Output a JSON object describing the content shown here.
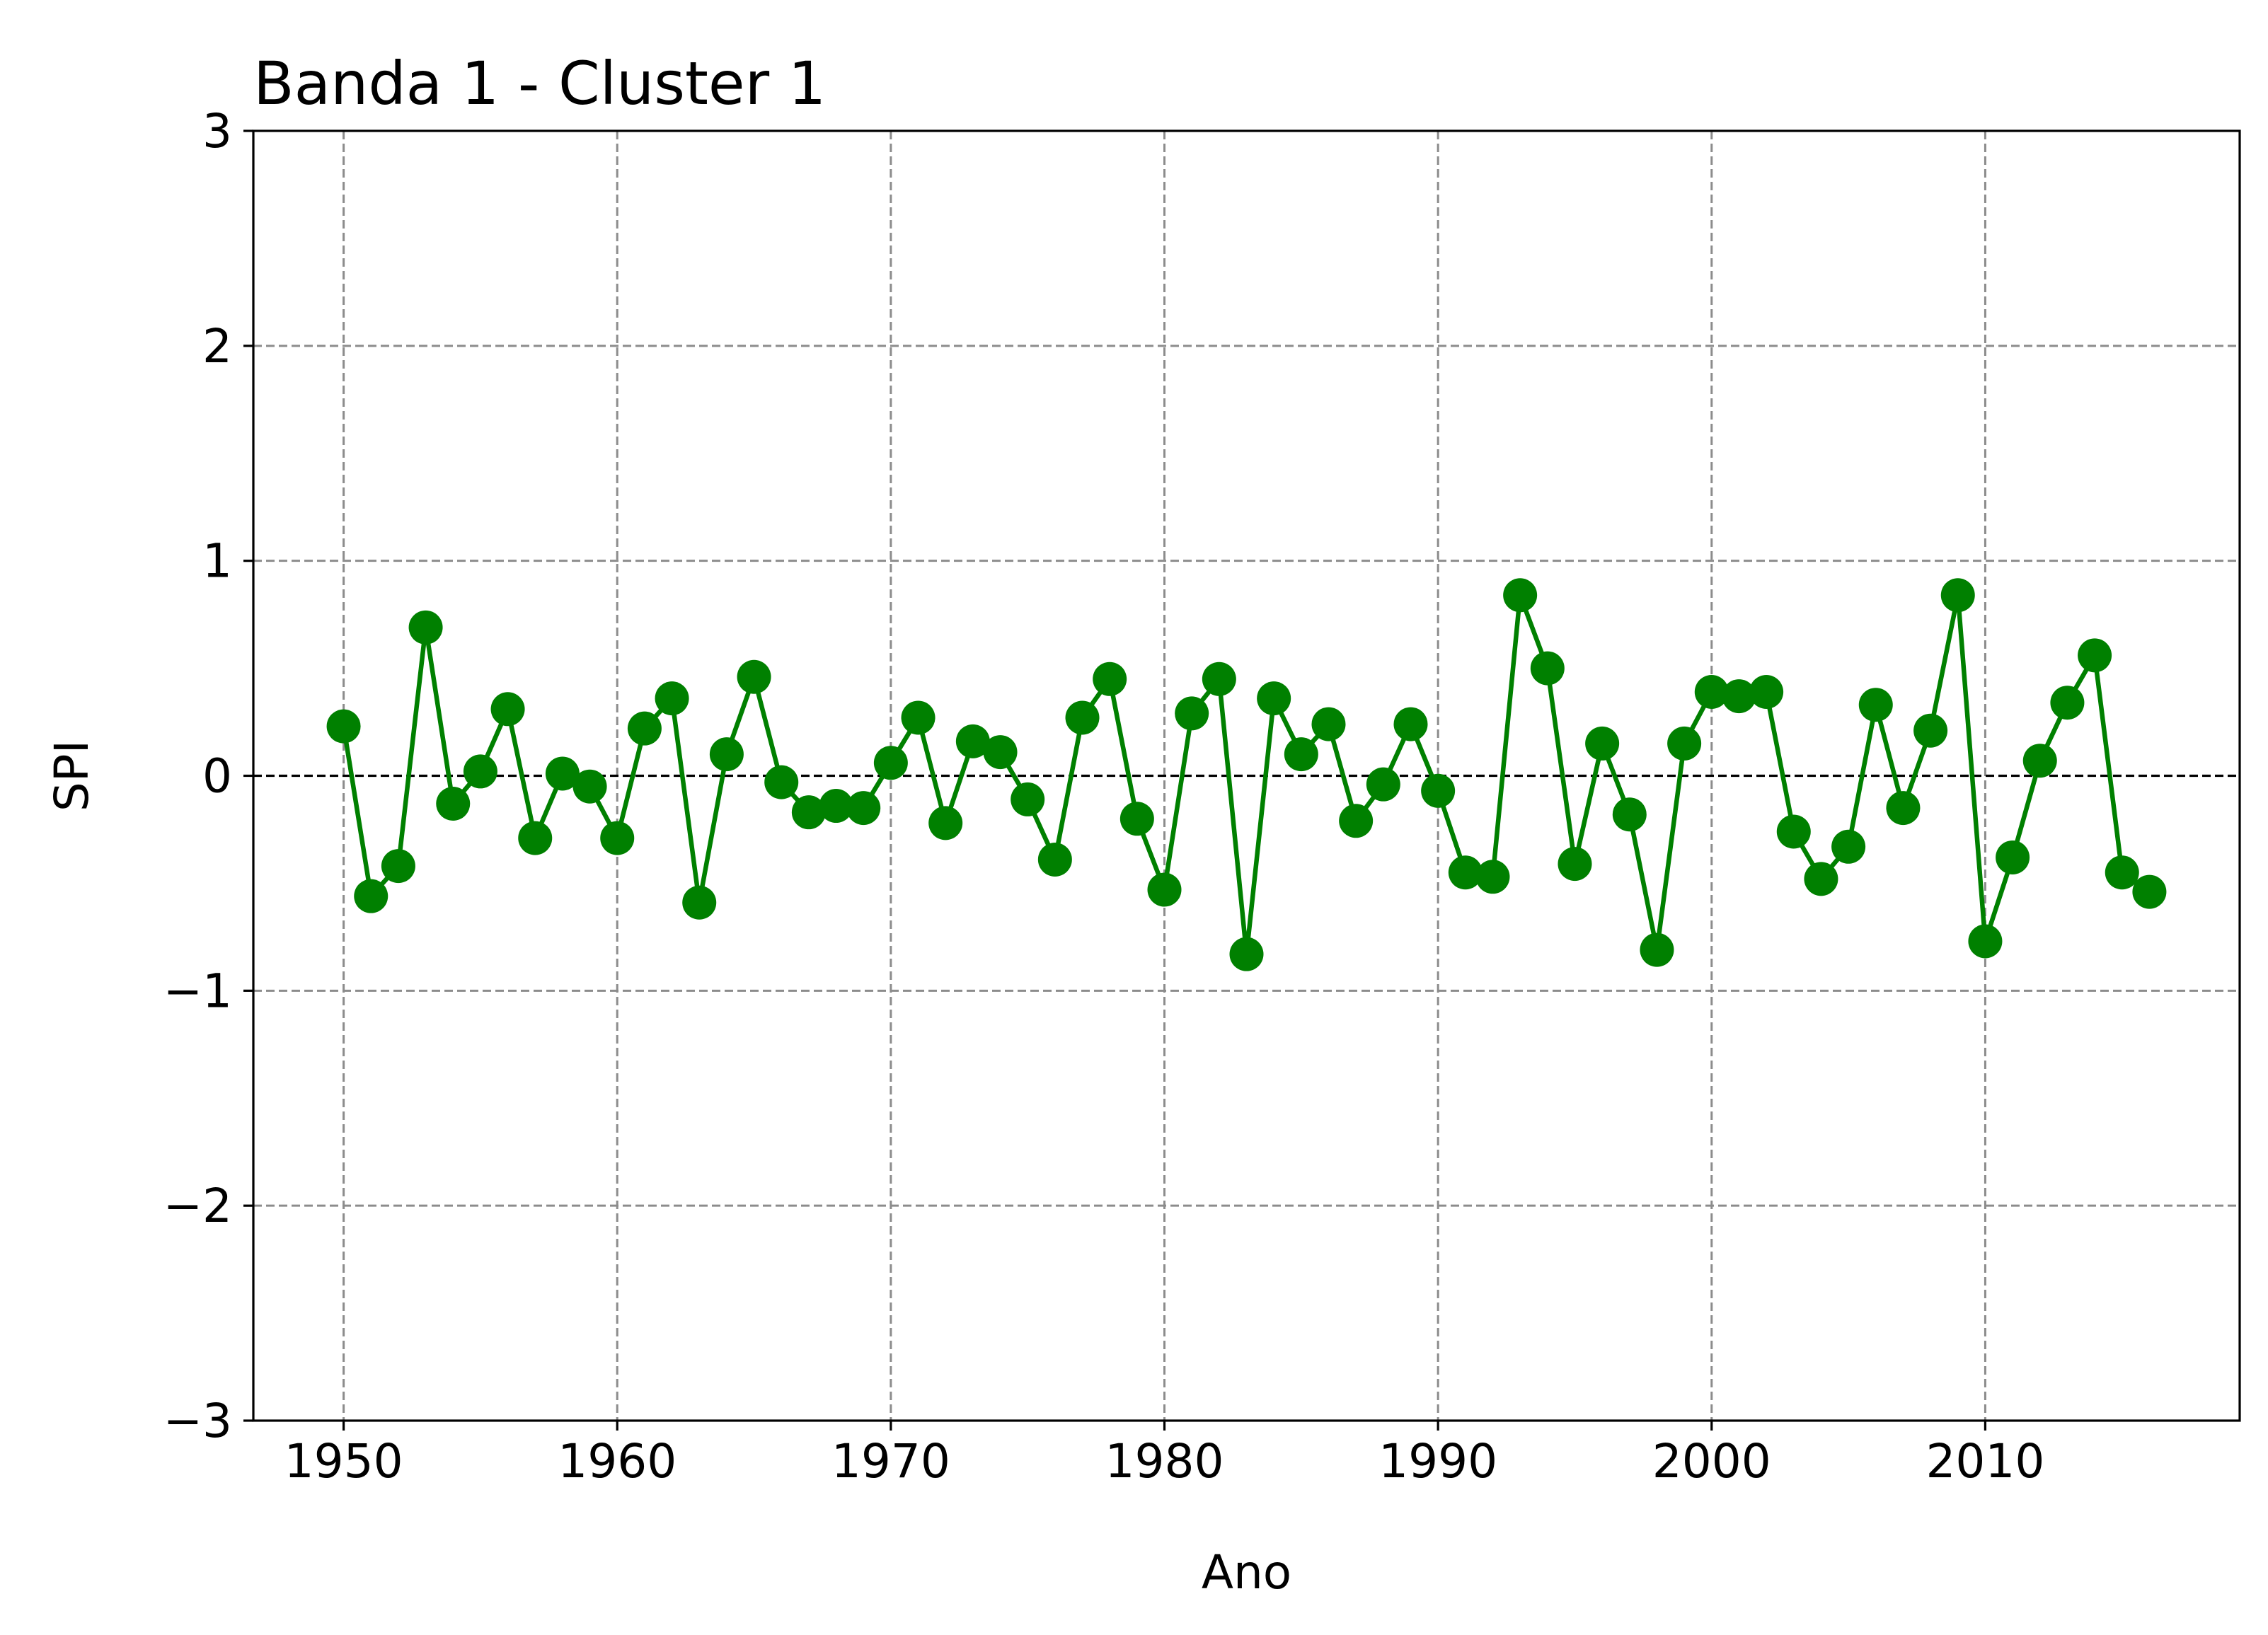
{
  "chart_data": {
    "type": "line",
    "title": "Banda 1 - Cluster 1",
    "xlabel": "Ano",
    "ylabel": "SPI",
    "xlim": [
      1946.7,
      2019.3
    ],
    "ylim": [
      -3,
      3
    ],
    "xticks": [
      1950,
      1960,
      1970,
      1980,
      1990,
      2000,
      2010
    ],
    "yticks": [
      -3,
      -2,
      -1,
      0,
      1,
      2,
      3
    ],
    "ytick_labels": [
      "−3",
      "−2",
      "−1",
      "0",
      "1",
      "2",
      "3"
    ],
    "grid": true,
    "reference_line": 0,
    "series": [
      {
        "color": "#008000",
        "marker": "circle",
        "x": [
          1950,
          1951,
          1952,
          1953,
          1954,
          1955,
          1956,
          1957,
          1958,
          1959,
          1960,
          1961,
          1962,
          1963,
          1964,
          1965,
          1966,
          1967,
          1968,
          1969,
          1970,
          1971,
          1972,
          1973,
          1974,
          1975,
          1976,
          1977,
          1978,
          1979,
          1980,
          1981,
          1982,
          1983,
          1984,
          1985,
          1986,
          1987,
          1988,
          1989,
          1990,
          1991,
          1992,
          1993,
          1994,
          1995,
          1996,
          1997,
          1998,
          1999,
          2000,
          2001,
          2002,
          2003,
          2004,
          2005,
          2006,
          2007,
          2008,
          2009,
          2010,
          2011,
          2012,
          2013,
          2014,
          2015,
          2016
        ],
        "y": [
          0.23,
          -0.56,
          -0.42,
          0.69,
          -0.13,
          0.02,
          0.31,
          -0.29,
          0.01,
          -0.05,
          -0.29,
          0.22,
          0.36,
          -0.59,
          0.1,
          0.46,
          -0.03,
          -0.17,
          -0.14,
          -0.15,
          0.06,
          0.27,
          -0.22,
          0.16,
          0.11,
          -0.11,
          -0.39,
          0.27,
          0.45,
          -0.2,
          -0.53,
          0.29,
          0.45,
          -0.83,
          0.36,
          0.1,
          0.24,
          -0.21,
          -0.04,
          0.24,
          -0.07,
          -0.45,
          -0.47,
          0.84,
          0.5,
          -0.41,
          0.15,
          -0.18,
          -0.81,
          0.15,
          0.39,
          0.37,
          0.39,
          -0.26,
          -0.48,
          -0.33,
          0.33,
          -0.15,
          0.21,
          0.84,
          -0.77,
          -0.38,
          0.07,
          0.34,
          0.56,
          -0.45,
          -0.54
        ]
      }
    ]
  }
}
